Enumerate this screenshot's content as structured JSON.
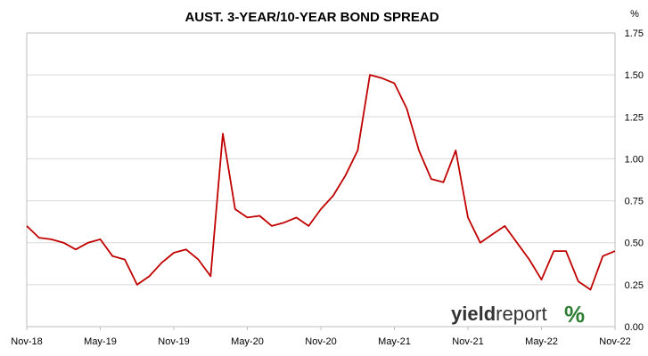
{
  "chart_data": {
    "type": "line",
    "title": "AUST. 3-YEAR/10-YEAR BOND SPREAD",
    "ylabel": "%",
    "ylim": [
      0,
      1.75
    ],
    "y_ticks": [
      "0.00",
      "0.25",
      "0.50",
      "0.75",
      "1.00",
      "1.25",
      "1.50",
      "1.75"
    ],
    "x_tick_labels": [
      "Nov-18",
      "May-19",
      "Nov-19",
      "May-20",
      "Nov-20",
      "May-21",
      "Nov-21",
      "May-22",
      "Nov-22"
    ],
    "grid": "horizontal",
    "y_axis_side": "right",
    "series": [
      {
        "color": "#c00000",
        "points": [
          [
            "2018-11",
            0.6
          ],
          [
            "2018-12",
            0.53
          ],
          [
            "2019-01",
            0.52
          ],
          [
            "2019-02",
            0.5
          ],
          [
            "2019-03",
            0.46
          ],
          [
            "2019-04",
            0.5
          ],
          [
            "2019-05",
            0.52
          ],
          [
            "2019-06",
            0.42
          ],
          [
            "2019-07",
            0.4
          ],
          [
            "2019-08",
            0.25
          ],
          [
            "2019-09",
            0.3
          ],
          [
            "2019-10",
            0.38
          ],
          [
            "2019-11",
            0.44
          ],
          [
            "2019-12",
            0.46
          ],
          [
            "2020-01",
            0.4
          ],
          [
            "2020-02",
            0.3
          ],
          [
            "2020-03",
            1.15
          ],
          [
            "2020-04",
            0.7
          ],
          [
            "2020-05",
            0.65
          ],
          [
            "2020-06",
            0.66
          ],
          [
            "2020-07",
            0.6
          ],
          [
            "2020-08",
            0.62
          ],
          [
            "2020-09",
            0.65
          ],
          [
            "2020-10",
            0.6
          ],
          [
            "2020-11",
            0.7
          ],
          [
            "2020-12",
            0.78
          ],
          [
            "2021-01",
            0.9
          ],
          [
            "2021-02",
            1.05
          ],
          [
            "2021-03",
            1.5
          ],
          [
            "2021-04",
            1.48
          ],
          [
            "2021-05",
            1.45
          ],
          [
            "2021-06",
            1.3
          ],
          [
            "2021-07",
            1.05
          ],
          [
            "2021-08",
            0.88
          ],
          [
            "2021-09",
            0.86
          ],
          [
            "2021-10",
            1.05
          ],
          [
            "2021-11",
            0.65
          ],
          [
            "2021-12",
            0.5
          ],
          [
            "2022-01",
            0.55
          ],
          [
            "2022-02",
            0.6
          ],
          [
            "2022-03",
            0.5
          ],
          [
            "2022-04",
            0.4
          ],
          [
            "2022-05",
            0.28
          ],
          [
            "2022-06",
            0.45
          ],
          [
            "2022-07",
            0.45
          ],
          [
            "2022-08",
            0.27
          ],
          [
            "2022-09",
            0.22
          ],
          [
            "2022-10",
            0.42
          ],
          [
            "2022-11",
            0.45
          ]
        ]
      }
    ]
  },
  "watermark": {
    "part1": "yield",
    "part2": "report",
    "symbol": "%",
    "symbol_colors": [
      "#2e7d32",
      "#c00000"
    ]
  }
}
